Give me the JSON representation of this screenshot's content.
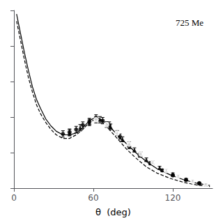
{
  "chart_data": {
    "type": "line",
    "title": "725 Me",
    "xlabel": "θ  (deg)",
    "xlim": [
      0,
      150
    ],
    "ylim": [
      0,
      1.0
    ],
    "xticks": [
      0,
      60,
      120
    ],
    "yticks": [
      0,
      0.2,
      0.4,
      0.6,
      0.8,
      1.0
    ],
    "tick_labels": "x",
    "grid": false,
    "series": [
      {
        "type": "line",
        "color": "#000000",
        "line_style": "solid",
        "x": [
          2,
          5,
          8,
          11,
          14,
          17,
          20,
          24,
          28,
          32,
          37,
          42,
          47,
          52,
          57,
          62,
          67,
          72,
          78,
          85,
          92,
          100,
          108,
          118,
          128,
          138,
          148
        ],
        "values": [
          0.98,
          0.87,
          0.76,
          0.66,
          0.57,
          0.5,
          0.45,
          0.39,
          0.35,
          0.32,
          0.3,
          0.3,
          0.31,
          0.34,
          0.38,
          0.4,
          0.38,
          0.35,
          0.3,
          0.25,
          0.2,
          0.15,
          0.11,
          0.075,
          0.048,
          0.028,
          0.015
        ]
      },
      {
        "type": "line",
        "color": "#000000",
        "line_style": "dashed",
        "x": [
          2,
          5,
          8,
          11,
          14,
          17,
          20,
          24,
          28,
          32,
          37,
          42,
          47,
          52,
          57,
          62,
          67,
          72,
          78,
          85,
          92,
          100,
          108,
          118,
          128,
          138,
          148
        ],
        "values": [
          0.94,
          0.83,
          0.72,
          0.62,
          0.54,
          0.47,
          0.42,
          0.37,
          0.33,
          0.3,
          0.28,
          0.28,
          0.3,
          0.33,
          0.37,
          0.39,
          0.37,
          0.33,
          0.28,
          0.22,
          0.17,
          0.12,
          0.085,
          0.055,
          0.033,
          0.018,
          0.009
        ]
      },
      {
        "type": "scatter",
        "color": "#000000",
        "marker": "circle",
        "x": [
          37,
          42,
          47,
          52,
          57,
          62,
          67,
          72,
          80,
          87,
          95,
          103,
          112,
          120,
          130,
          140
        ],
        "values": [
          0.305,
          0.315,
          0.33,
          0.355,
          0.375,
          0.395,
          0.38,
          0.355,
          0.29,
          0.235,
          0.185,
          0.14,
          0.1,
          0.072,
          0.046,
          0.028
        ],
        "yerr": [
          0.018,
          0.018,
          0.018,
          0.018,
          0.018,
          0.018,
          0.018,
          0.018,
          0.015,
          0.013,
          0.011,
          0.009,
          0.007,
          0.006,
          0.005,
          0.004
        ]
      },
      {
        "type": "scatter",
        "color": "#000000",
        "marker": "triangle",
        "x": [
          42,
          50,
          57,
          65,
          73,
          82,
          91,
          100,
          110,
          120,
          130,
          140
        ],
        "values": [
          0.312,
          0.34,
          0.37,
          0.385,
          0.345,
          0.275,
          0.215,
          0.16,
          0.115,
          0.08,
          0.05,
          0.028
        ],
        "yerr": [
          0.018,
          0.018,
          0.018,
          0.018,
          0.016,
          0.014,
          0.012,
          0.01,
          0.008,
          0.006,
          0.005,
          0.004
        ]
      },
      {
        "type": "scatter",
        "color": "#000000",
        "marker": "open_circle",
        "x": [
          62,
          70,
          78,
          87,
          96,
          105,
          115,
          124,
          135,
          145
        ],
        "values": [
          0.385,
          0.358,
          0.31,
          0.248,
          0.192,
          0.145,
          0.1,
          0.068,
          0.04,
          0.022
        ],
        "yerr": [
          0.018,
          0.016,
          0.014,
          0.013,
          0.011,
          0.009,
          0.007,
          0.006,
          0.005,
          0.004
        ]
      }
    ]
  }
}
